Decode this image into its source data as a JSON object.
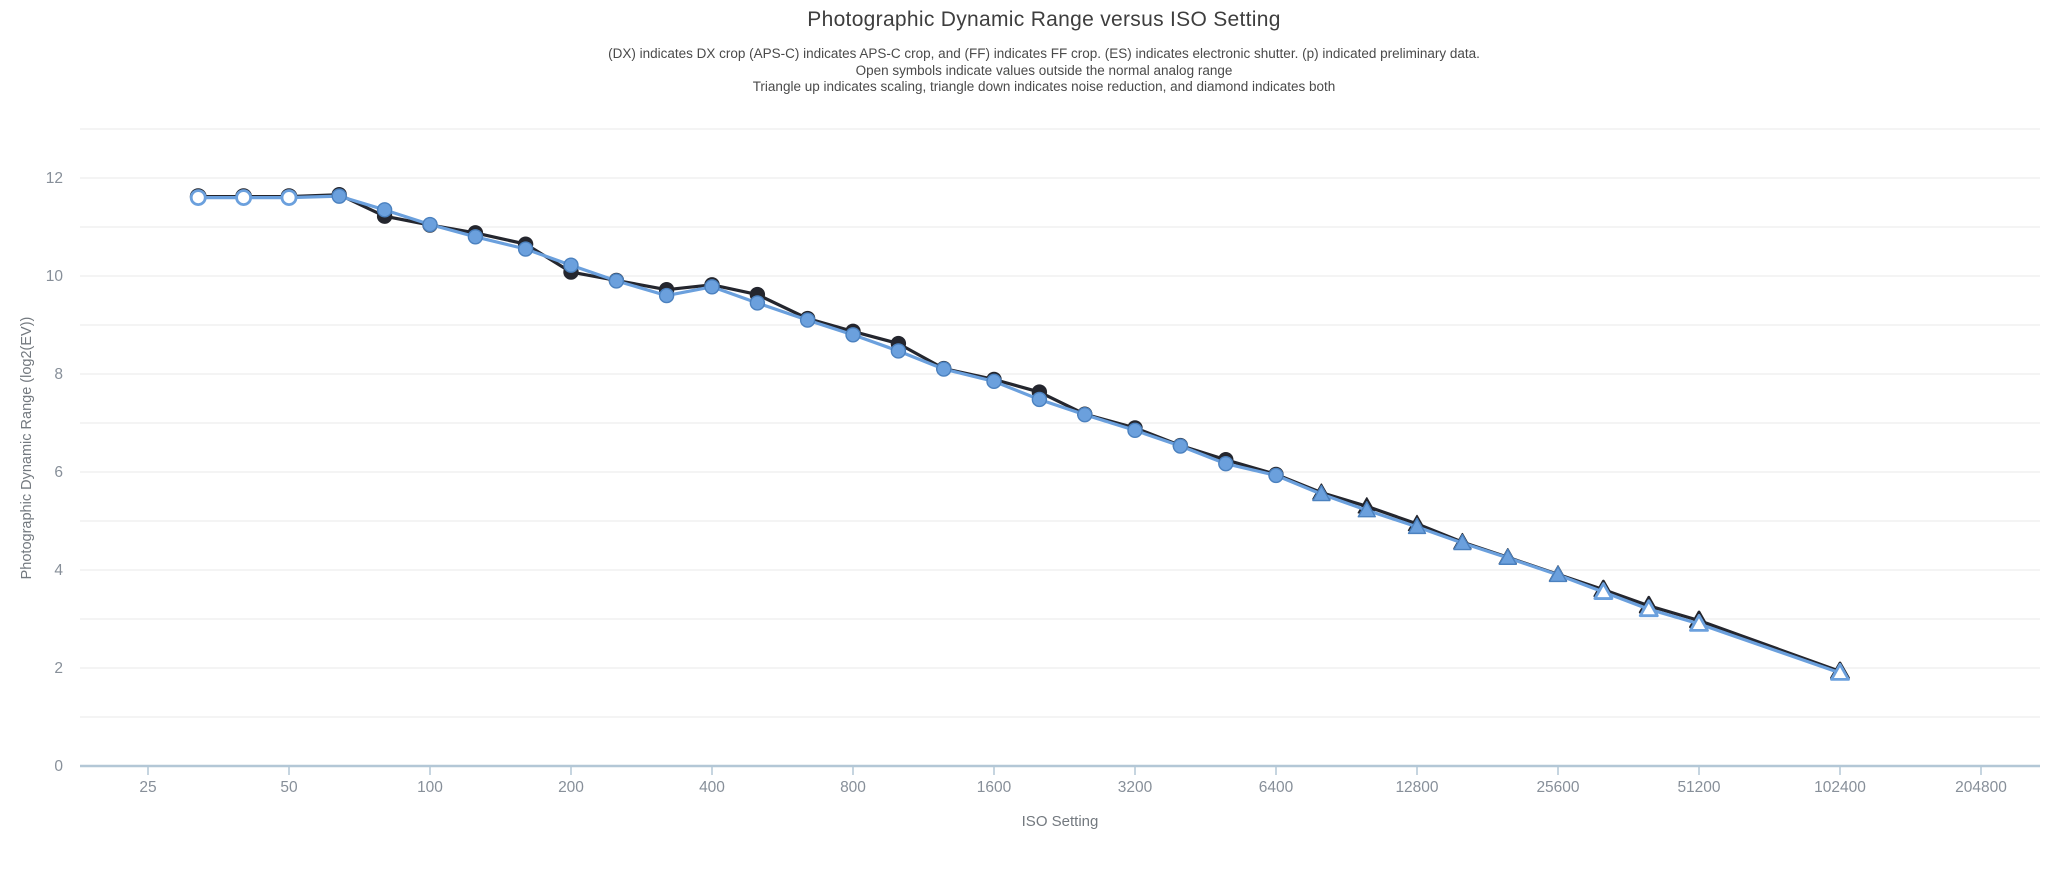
{
  "header": {
    "title": "Photographic Dynamic Range versus ISO Setting",
    "subtitle_line1": "(DX) indicates DX crop (APS-C) indicates APS-C crop, and (FF) indicates FF crop. (ES) indicates electronic shutter. (p) indicated preliminary data.",
    "subtitle_line2": "Open symbols indicate values outside the normal analog range",
    "subtitle_line3": "Triangle up indicates scaling, triangle down indicates noise reduction, and diamond indicates both"
  },
  "colors": {
    "background": "#ffffff",
    "grid": "#e8e8e8",
    "axis": "#b3c7d6",
    "tick_label": "#878f99",
    "axis_title": "#73797f",
    "title": "#3e3e3e",
    "subtitle": "#4a4a4a",
    "series_dark": "#24262e",
    "series_blue": "#6ba0dd",
    "series_blue_stroke": "#4b81bf",
    "open_marker_fill": "#ffffff"
  },
  "chart_data": {
    "type": "line",
    "title": "Photographic Dynamic Range versus ISO Setting",
    "xlabel": "ISO Setting",
    "ylabel": "Photographic Dynamic Range (log2(EV))",
    "x_scale": "log2",
    "xlim": [
      25,
      204800
    ],
    "ylim": [
      0,
      13
    ],
    "grid": "horizontal lines every 1 EV, no vertical gridlines",
    "legend_position": "none",
    "marker_semantics": {
      "open_symbol": "value outside the normal analog range",
      "triangle_up": "scaling",
      "triangle_down": "noise reduction",
      "diamond": "scaling and noise reduction"
    },
    "x_ticks": [
      {
        "value": 25,
        "label": "25"
      },
      {
        "value": 50,
        "label": "50"
      },
      {
        "value": 100,
        "label": "100"
      },
      {
        "value": 200,
        "label": "200"
      },
      {
        "value": 400,
        "label": "400"
      },
      {
        "value": 800,
        "label": "800"
      },
      {
        "value": 1600,
        "label": "1600"
      },
      {
        "value": 3200,
        "label": "3200"
      },
      {
        "value": 6400,
        "label": "6400"
      },
      {
        "value": 12800,
        "label": "12800"
      },
      {
        "value": 25600,
        "label": "25600"
      },
      {
        "value": 51200,
        "label": "51200"
      },
      {
        "value": 102400,
        "label": "102400"
      },
      {
        "value": 204800,
        "label": "204800"
      }
    ],
    "y_ticks": [
      0,
      2,
      4,
      6,
      8,
      10,
      12
    ],
    "series": [
      {
        "name": "series-dark",
        "color": "#24262e",
        "points": [
          {
            "iso": 32,
            "pdr": 11.62,
            "marker": "circle",
            "open": true
          },
          {
            "iso": 40,
            "pdr": 11.62,
            "marker": "circle",
            "open": true
          },
          {
            "iso": 50,
            "pdr": 11.62,
            "marker": "circle",
            "open": true
          },
          {
            "iso": 64,
            "pdr": 11.66,
            "marker": "circle",
            "open": false
          },
          {
            "iso": 80,
            "pdr": 11.22,
            "marker": "circle",
            "open": false
          },
          {
            "iso": 100,
            "pdr": 11.04,
            "marker": "circle",
            "open": false
          },
          {
            "iso": 125,
            "pdr": 10.88,
            "marker": "circle",
            "open": false
          },
          {
            "iso": 160,
            "pdr": 10.65,
            "marker": "circle",
            "open": false
          },
          {
            "iso": 200,
            "pdr": 10.08,
            "marker": "circle",
            "open": false
          },
          {
            "iso": 250,
            "pdr": 9.91,
            "marker": "circle",
            "open": false
          },
          {
            "iso": 320,
            "pdr": 9.72,
            "marker": "circle",
            "open": false
          },
          {
            "iso": 400,
            "pdr": 9.82,
            "marker": "circle",
            "open": false
          },
          {
            "iso": 500,
            "pdr": 9.62,
            "marker": "circle",
            "open": false
          },
          {
            "iso": 640,
            "pdr": 9.13,
            "marker": "circle",
            "open": false
          },
          {
            "iso": 800,
            "pdr": 8.87,
            "marker": "circle",
            "open": false
          },
          {
            "iso": 1000,
            "pdr": 8.62,
            "marker": "circle",
            "open": false
          },
          {
            "iso": 1250,
            "pdr": 8.11,
            "marker": "circle",
            "open": false
          },
          {
            "iso": 1600,
            "pdr": 7.89,
            "marker": "circle",
            "open": false
          },
          {
            "iso": 2000,
            "pdr": 7.63,
            "marker": "circle",
            "open": false
          },
          {
            "iso": 2500,
            "pdr": 7.18,
            "marker": "circle",
            "open": false
          },
          {
            "iso": 3200,
            "pdr": 6.9,
            "marker": "circle",
            "open": false
          },
          {
            "iso": 4000,
            "pdr": 6.54,
            "marker": "circle",
            "open": false
          },
          {
            "iso": 5000,
            "pdr": 6.25,
            "marker": "circle",
            "open": false
          },
          {
            "iso": 6400,
            "pdr": 5.95,
            "marker": "circle",
            "open": false
          },
          {
            "iso": 8000,
            "pdr": 5.58,
            "marker": "triangle-up",
            "open": false
          },
          {
            "iso": 10000,
            "pdr": 5.3,
            "marker": "triangle-up",
            "open": false
          },
          {
            "iso": 12800,
            "pdr": 4.94,
            "marker": "triangle-up",
            "open": false
          },
          {
            "iso": 16000,
            "pdr": 4.57,
            "marker": "triangle-up",
            "open": false
          },
          {
            "iso": 20000,
            "pdr": 4.26,
            "marker": "triangle-up",
            "open": false
          },
          {
            "iso": 25600,
            "pdr": 3.91,
            "marker": "triangle-up",
            "open": false
          },
          {
            "iso": 32000,
            "pdr": 3.6,
            "marker": "triangle-up",
            "open": true
          },
          {
            "iso": 40000,
            "pdr": 3.27,
            "marker": "triangle-up",
            "open": true
          },
          {
            "iso": 51200,
            "pdr": 2.97,
            "marker": "triangle-up",
            "open": true
          },
          {
            "iso": 102400,
            "pdr": 1.93,
            "marker": "triangle-up",
            "open": true
          }
        ]
      },
      {
        "name": "series-blue",
        "color": "#6ba0dd",
        "marker_stroke": "#4b81bf",
        "points": [
          {
            "iso": 32,
            "pdr": 11.6,
            "marker": "circle",
            "open": true
          },
          {
            "iso": 40,
            "pdr": 11.6,
            "marker": "circle",
            "open": true
          },
          {
            "iso": 50,
            "pdr": 11.6,
            "marker": "circle",
            "open": true
          },
          {
            "iso": 64,
            "pdr": 11.63,
            "marker": "circle",
            "open": false
          },
          {
            "iso": 80,
            "pdr": 11.35,
            "marker": "circle",
            "open": false
          },
          {
            "iso": 100,
            "pdr": 11.05,
            "marker": "circle",
            "open": false
          },
          {
            "iso": 125,
            "pdr": 10.8,
            "marker": "circle",
            "open": false
          },
          {
            "iso": 160,
            "pdr": 10.55,
            "marker": "circle",
            "open": false
          },
          {
            "iso": 200,
            "pdr": 10.22,
            "marker": "circle",
            "open": false
          },
          {
            "iso": 250,
            "pdr": 9.9,
            "marker": "circle",
            "open": false
          },
          {
            "iso": 320,
            "pdr": 9.6,
            "marker": "circle",
            "open": false
          },
          {
            "iso": 400,
            "pdr": 9.78,
            "marker": "circle",
            "open": false
          },
          {
            "iso": 500,
            "pdr": 9.45,
            "marker": "circle",
            "open": false
          },
          {
            "iso": 640,
            "pdr": 9.1,
            "marker": "circle",
            "open": false
          },
          {
            "iso": 800,
            "pdr": 8.8,
            "marker": "circle",
            "open": false
          },
          {
            "iso": 1000,
            "pdr": 8.47,
            "marker": "circle",
            "open": false
          },
          {
            "iso": 1250,
            "pdr": 8.1,
            "marker": "circle",
            "open": false
          },
          {
            "iso": 1600,
            "pdr": 7.85,
            "marker": "circle",
            "open": false
          },
          {
            "iso": 2000,
            "pdr": 7.48,
            "marker": "circle",
            "open": false
          },
          {
            "iso": 2500,
            "pdr": 7.17,
            "marker": "circle",
            "open": false
          },
          {
            "iso": 3200,
            "pdr": 6.85,
            "marker": "circle",
            "open": false
          },
          {
            "iso": 4000,
            "pdr": 6.53,
            "marker": "circle",
            "open": false
          },
          {
            "iso": 5000,
            "pdr": 6.17,
            "marker": "circle",
            "open": false
          },
          {
            "iso": 6400,
            "pdr": 5.93,
            "marker": "circle",
            "open": false
          },
          {
            "iso": 8000,
            "pdr": 5.55,
            "marker": "triangle-up",
            "open": false
          },
          {
            "iso": 10000,
            "pdr": 5.22,
            "marker": "triangle-up",
            "open": false
          },
          {
            "iso": 12800,
            "pdr": 4.88,
            "marker": "triangle-up",
            "open": false
          },
          {
            "iso": 16000,
            "pdr": 4.55,
            "marker": "triangle-up",
            "open": false
          },
          {
            "iso": 20000,
            "pdr": 4.25,
            "marker": "triangle-up",
            "open": false
          },
          {
            "iso": 25600,
            "pdr": 3.9,
            "marker": "triangle-up",
            "open": false
          },
          {
            "iso": 32000,
            "pdr": 3.55,
            "marker": "triangle-up",
            "open": true
          },
          {
            "iso": 40000,
            "pdr": 3.2,
            "marker": "triangle-up",
            "open": true
          },
          {
            "iso": 51200,
            "pdr": 2.9,
            "marker": "triangle-up",
            "open": true
          },
          {
            "iso": 102400,
            "pdr": 1.9,
            "marker": "triangle-up",
            "open": true
          }
        ]
      }
    ]
  }
}
